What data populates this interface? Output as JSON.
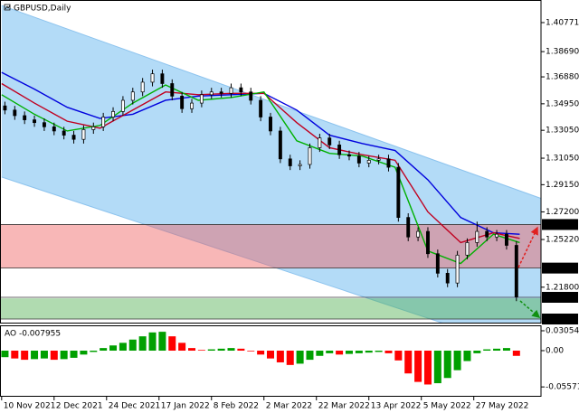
{
  "chart_data": {
    "type": "candlestick",
    "title": "GBPUSD,Daily",
    "x": [
      1,
      4,
      7,
      10,
      13,
      16,
      19,
      22,
      25,
      28,
      31,
      34,
      37,
      40,
      43,
      46,
      49,
      52,
      55,
      58,
      61,
      64,
      67,
      70,
      73,
      76,
      79,
      82,
      85,
      88,
      91,
      94,
      97,
      100,
      103,
      106,
      109,
      112,
      115,
      118,
      121,
      124,
      127,
      130,
      133,
      136,
      139,
      142,
      145,
      148,
      151,
      154,
      157
    ],
    "open": [
      1.348,
      1.345,
      1.341,
      1.338,
      1.336,
      1.333,
      1.33,
      1.327,
      1.324,
      1.331,
      1.333,
      1.34,
      1.344,
      1.352,
      1.358,
      1.365,
      1.371,
      1.364,
      1.355,
      1.346,
      1.35,
      1.356,
      1.358,
      1.357,
      1.361,
      1.358,
      1.352,
      1.34,
      1.33,
      1.31,
      1.305,
      1.306,
      1.318,
      1.325,
      1.32,
      1.313,
      1.312,
      1.307,
      1.309,
      1.31,
      1.304,
      1.268,
      1.254,
      1.258,
      1.242,
      1.228,
      1.221,
      1.241,
      1.25,
      1.258,
      1.254,
      1.256,
      1.248
    ],
    "high": [
      1.351,
      1.348,
      1.344,
      1.341,
      1.339,
      1.336,
      1.333,
      1.33,
      1.334,
      1.336,
      1.343,
      1.347,
      1.355,
      1.361,
      1.368,
      1.374,
      1.374,
      1.367,
      1.358,
      1.353,
      1.359,
      1.361,
      1.361,
      1.364,
      1.364,
      1.361,
      1.355,
      1.343,
      1.333,
      1.313,
      1.309,
      1.321,
      1.328,
      1.328,
      1.323,
      1.316,
      1.315,
      1.312,
      1.313,
      1.313,
      1.307,
      1.271,
      1.261,
      1.261,
      1.245,
      1.231,
      1.244,
      1.253,
      1.265,
      1.261,
      1.259,
      1.259,
      1.251
    ],
    "low": [
      1.342,
      1.338,
      1.335,
      1.333,
      1.33,
      1.327,
      1.324,
      1.321,
      1.321,
      1.328,
      1.33,
      1.337,
      1.341,
      1.349,
      1.355,
      1.362,
      1.361,
      1.352,
      1.343,
      1.343,
      1.347,
      1.353,
      1.354,
      1.354,
      1.355,
      1.349,
      1.337,
      1.327,
      1.307,
      1.302,
      1.302,
      1.303,
      1.315,
      1.317,
      1.31,
      1.309,
      1.304,
      1.304,
      1.306,
      1.301,
      1.265,
      1.251,
      1.251,
      1.239,
      1.225,
      1.218,
      1.218,
      1.238,
      1.247,
      1.251,
      1.251,
      1.245,
      1.208
    ],
    "close": [
      1.345,
      1.341,
      1.338,
      1.336,
      1.333,
      1.33,
      1.327,
      1.324,
      1.331,
      1.333,
      1.34,
      1.344,
      1.352,
      1.358,
      1.365,
      1.371,
      1.364,
      1.355,
      1.346,
      1.35,
      1.356,
      1.358,
      1.357,
      1.361,
      1.358,
      1.352,
      1.34,
      1.33,
      1.31,
      1.305,
      1.306,
      1.318,
      1.325,
      1.32,
      1.313,
      1.312,
      1.307,
      1.309,
      1.31,
      1.304,
      1.268,
      1.254,
      1.258,
      1.242,
      1.228,
      1.221,
      1.241,
      1.25,
      1.258,
      1.254,
      1.256,
      1.248,
      1.211
    ],
    "up_color": "#ffffff",
    "down_color": "#000000",
    "xlim": [
      -0.5,
      164.5
    ],
    "xticks": [
      {
        "value": 0,
        "label": "10 Nov 2021"
      },
      {
        "value": 16,
        "label": "2 Dec 2021"
      },
      {
        "value": 32,
        "label": "24 Dec 2021"
      },
      {
        "value": 48,
        "label": "17 Jan 2022"
      },
      {
        "value": 64,
        "label": "8 Feb 2022"
      },
      {
        "value": 80,
        "label": "2 Mar 2022"
      },
      {
        "value": 96,
        "label": "22 Mar 2022"
      },
      {
        "value": 112,
        "label": "13 Apr 2022"
      },
      {
        "value": 128,
        "label": "5 May 2022"
      },
      {
        "value": 144,
        "label": "27 May 2022"
      }
    ],
    "ylim": [
      1.1926,
      1.42262
    ],
    "yticks": [
      1.40771,
      {
        "value": 1.3869,
        "label": "1.38690"
      },
      {
        "value": 1.3688,
        "label": "1.36880"
      },
      {
        "value": 1.3495,
        "label": "1.34950"
      },
      {
        "value": 1.3305,
        "label": "1.33050"
      },
      {
        "value": 1.3105,
        "label": "1.31050"
      },
      {
        "value": 1.2915,
        "label": "1.29150"
      },
      {
        "value": 1.272,
        "label": "1.27200"
      },
      {
        "value": 1.2522,
        "label": "1.25220"
      },
      {
        "value": 1.218,
        "label": "1.21800"
      }
    ],
    "level_ticks": [
      1.26295,
      1.23171,
      1.21075,
      1.19519
    ],
    "ma": [
      {
        "color": "#0000dd",
        "x": [
          0,
          10,
          20,
          30,
          40,
          50,
          60,
          70,
          80,
          90,
          100,
          110,
          120,
          130,
          140,
          150,
          158
        ],
        "values": [
          1.372,
          1.36,
          1.347,
          1.339,
          1.342,
          1.352,
          1.355,
          1.356,
          1.357,
          1.345,
          1.327,
          1.321,
          1.316,
          1.295,
          1.268,
          1.257,
          1.256
        ]
      },
      {
        "color": "#c00020",
        "x": [
          0,
          10,
          20,
          30,
          40,
          50,
          60,
          70,
          80,
          90,
          100,
          110,
          120,
          130,
          140,
          150,
          158
        ],
        "values": [
          1.364,
          1.35,
          1.337,
          1.332,
          1.345,
          1.358,
          1.356,
          1.357,
          1.357,
          1.336,
          1.318,
          1.313,
          1.309,
          1.272,
          1.25,
          1.257,
          1.253
        ]
      },
      {
        "color": "#00b000",
        "x": [
          0,
          10,
          20,
          30,
          40,
          50,
          60,
          70,
          80,
          90,
          100,
          110,
          120,
          130,
          140,
          150,
          158
        ],
        "values": [
          1.356,
          1.342,
          1.33,
          1.334,
          1.35,
          1.363,
          1.352,
          1.354,
          1.358,
          1.323,
          1.314,
          1.312,
          1.304,
          1.244,
          1.235,
          1.256,
          1.25
        ]
      }
    ],
    "channel": {
      "color": "#b3dbf7",
      "x": [
        0,
        176
      ],
      "upper": [
        1.42,
        1.272
      ],
      "lower": [
        1.297,
        1.16
      ]
    },
    "zones": [
      {
        "from": 1.23171,
        "to": 1.26295,
        "color": "#f06060"
      },
      {
        "from": 1.19519,
        "to": 1.21,
        "color": "#50b050"
      }
    ],
    "indicator": {
      "type": "bar",
      "title": "AO -0.007955",
      "values": [
        -0.01,
        -0.012,
        -0.014,
        -0.013,
        -0.012,
        -0.014,
        -0.013,
        -0.011,
        -0.006,
        -0.002,
        0.004,
        0.008,
        0.012,
        0.017,
        0.022,
        0.028,
        0.029,
        0.022,
        0.012,
        0.004,
        0.001,
        0.002,
        0.003,
        0.004,
        0.003,
        -0.001,
        -0.006,
        -0.012,
        -0.018,
        -0.022,
        -0.02,
        -0.014,
        -0.008,
        -0.004,
        -0.006,
        -0.005,
        -0.004,
        -0.003,
        -0.002,
        -0.004,
        -0.015,
        -0.035,
        -0.048,
        -0.052,
        -0.05,
        -0.042,
        -0.03,
        -0.016,
        -0.004,
        0.002,
        0.003,
        0.004,
        -0.008
      ],
      "up_color": "#00a000",
      "down_color": "#ff0000",
      "ylim": [
        -0.0694,
        0.0361
      ],
      "yticks": [
        0.030544,
        {
          "value": 0,
          "label": "0.00"
        },
        -0.055719
      ]
    }
  }
}
